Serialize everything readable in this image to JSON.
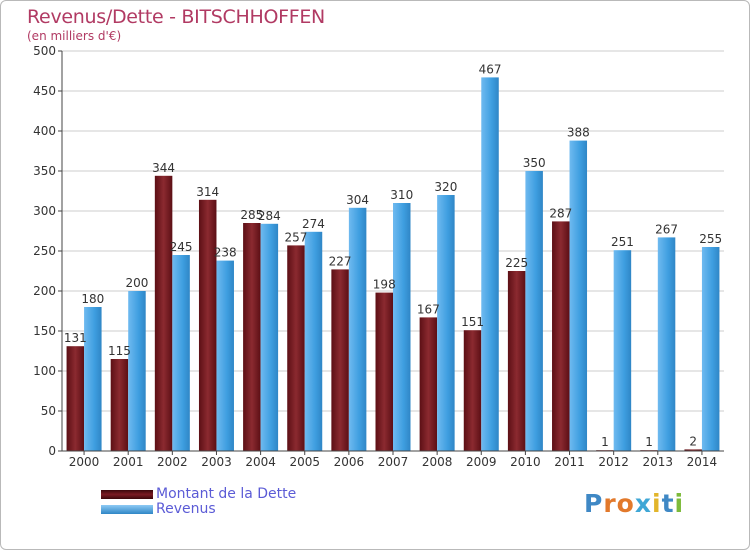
{
  "title": "Revenus/Dette - BITSCHHOFFEN",
  "subtitle": "(en milliers d'€)",
  "logo": {
    "text": "Proxiti",
    "colors": [
      "#3f88c5",
      "#e2792b",
      "#e2792b",
      "#3fa7d6",
      "#e2b52b",
      "#3f88c5",
      "#7cba3a"
    ]
  },
  "colors": {
    "dette": "#7a1a22",
    "revenus": "#3e9ee0",
    "axis": "#444444",
    "grid": "#cccccc"
  },
  "chart_data": {
    "type": "bar",
    "categories": [
      "2000",
      "2001",
      "2002",
      "2003",
      "2004",
      "2005",
      "2006",
      "2007",
      "2008",
      "2009",
      "2010",
      "2011",
      "2012",
      "2013",
      "2014"
    ],
    "series": [
      {
        "name": "Montant de la Dette",
        "values": [
          131,
          115,
          344,
          314,
          285,
          257,
          227,
          198,
          167,
          151,
          225,
          287,
          1,
          1,
          2
        ]
      },
      {
        "name": "Revenus",
        "values": [
          180,
          200,
          245,
          238,
          284,
          274,
          304,
          310,
          320,
          467,
          350,
          388,
          251,
          267,
          255
        ]
      }
    ],
    "ylim": [
      0,
      500
    ],
    "yticks": [
      0,
      50,
      100,
      150,
      200,
      250,
      300,
      350,
      400,
      450,
      500
    ],
    "grid": true,
    "legend": "bottom-left"
  }
}
